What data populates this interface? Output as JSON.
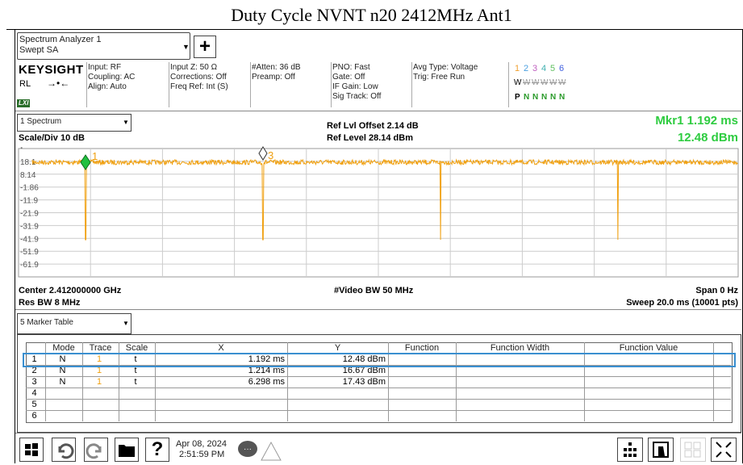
{
  "title": "Duty Cycle NVNT n20 2412MHz Ant1",
  "toolbar": {
    "app": "Spectrum Analyzer 1",
    "mode": "Swept SA",
    "add": "+"
  },
  "brand": "KEYSIGHT",
  "rl": "RL",
  "lxi": "LXI",
  "settings": [
    [
      "Input: RF",
      "Coupling: AC",
      "Align: Auto"
    ],
    [
      "Input Z: 50 Ω",
      "Corrections: Off",
      "Freq Ref: Int (S)"
    ],
    [
      "#Atten: 36 dB",
      "Preamp: Off"
    ],
    [
      "PNO: Fast",
      "Gate: Off",
      "IF Gain: Low",
      "Sig Track: Off"
    ],
    [
      "Avg Type: Voltage",
      "Trig: Free Run"
    ]
  ],
  "trace_numbers": [
    "1",
    "2",
    "3",
    "4",
    "5",
    "6"
  ],
  "trace_types": [
    "W",
    "W",
    "W",
    "W",
    "W",
    "W"
  ],
  "trace_detectors": [
    "P",
    "N",
    "N",
    "N",
    "N",
    "N"
  ],
  "window": "1 Spectrum",
  "ref_offset": "Ref Lvl Offset 2.14 dB",
  "ref_level": "Ref Level 28.14 dBm",
  "marker": {
    "label": "Mkr1  1.192 ms",
    "value": "12.48 dBm"
  },
  "scale": "Scale/Div 10 dB",
  "log": "Log",
  "y_labels": [
    "18.1",
    "8.14",
    "-1.86",
    "-11.9",
    "-21.9",
    "-31.9",
    "-41.9",
    "-51.9",
    "-61.9"
  ],
  "marker_labels": [
    "1",
    "3"
  ],
  "footer": {
    "center": "Center 2.412000000 GHz",
    "video_bw": "#Video BW 50 MHz",
    "span": "Span 0 Hz",
    "res_bw": "Res BW 8 MHz",
    "sweep": "Sweep 20.0 ms (10001 pts)"
  },
  "table_window": "5 Marker Table",
  "table": {
    "columns": [
      "Mode",
      "Trace",
      "Scale",
      "X",
      "Y",
      "Function",
      "Function Width",
      "Function Value"
    ],
    "rows": [
      [
        "1",
        "N",
        "1",
        "t",
        "1.192 ms",
        "12.48 dBm"
      ],
      [
        "2",
        "N",
        "1",
        "t",
        "1.214 ms",
        "16.67 dBm"
      ],
      [
        "3",
        "N",
        "1",
        "t",
        "6.298 ms",
        "17.43 dBm"
      ],
      [
        "4"
      ],
      [
        "5"
      ],
      [
        "6"
      ]
    ]
  },
  "taskbar": {
    "date": "Apr 08, 2024",
    "time": "2:51:59 PM"
  }
}
